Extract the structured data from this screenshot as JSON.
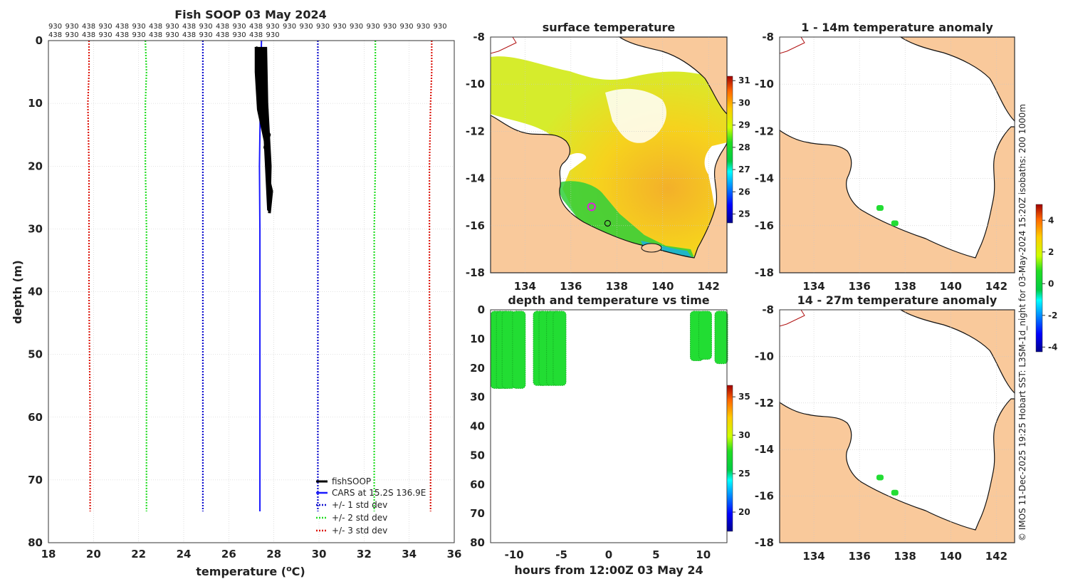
{
  "footer_note": "© IMOS 11-Dec-2025 19:25 Hobart SST: L3SM-1d_night for 03-May-2024 15:20Z isobaths: 200  1000m",
  "colors": {
    "fish": "#000000",
    "cars": "#1a1aff",
    "std1": "#1010d0",
    "std2": "#22dd22",
    "std3": "#dd1a10",
    "land": "#f9c99b",
    "coast": "#111111",
    "obs": "#22dd33",
    "grid": "#c8c8c8"
  },
  "chart_data": [
    {
      "id": "profile",
      "type": "line",
      "title": "Fish SOOP 03 May 2024",
      "xlabel": "temperature (°C)",
      "xlabel_main": "temperature (",
      "xlabel_sup": "o",
      "xlabel_end": "C)",
      "ylabel": "depth (m)",
      "xlim": [
        18,
        36
      ],
      "ylim": [
        80,
        0
      ],
      "xticks": [
        "18",
        "20",
        "22",
        "24",
        "26",
        "28",
        "30",
        "32",
        "34",
        "36"
      ],
      "yticks": [
        "0",
        "10",
        "20",
        "30",
        "40",
        "50",
        "60",
        "70",
        "80"
      ],
      "top_labels_row1": [
        "930",
        "930",
        "438",
        "930",
        "438",
        "930",
        "438",
        "930",
        "438",
        "930",
        "438",
        "930",
        "438",
        "930",
        "930",
        "930",
        "930",
        "930",
        "930",
        "930",
        "930",
        "930",
        "930",
        "930"
      ],
      "top_labels_row2": [
        "438",
        "930",
        "438",
        "930",
        "438",
        "930",
        "438",
        "930",
        "438",
        "930",
        "438",
        "930",
        "438",
        "930"
      ],
      "series": [
        {
          "name": "fishSOOP",
          "x": [
            27.2,
            27.5,
            27.3,
            27.6,
            27.4,
            27.7,
            27.5,
            27.8,
            27.6,
            27.8,
            27.7,
            27.9,
            27.8
          ],
          "y": [
            1,
            3,
            5,
            7,
            9,
            11,
            13,
            15,
            17,
            19,
            21,
            24,
            27.5
          ]
        },
        {
          "name": "CARS at 15.2S 136.9E",
          "x": [
            27.45,
            27.42,
            27.4,
            27.38,
            27.36,
            27.37,
            27.38,
            27.38,
            27.38,
            27.38
          ],
          "y": [
            0,
            5,
            10,
            15,
            20,
            25,
            30,
            50,
            70,
            75
          ]
        },
        {
          "name": "+/- 1 std dev",
          "lower": [
            24.85,
            24.85,
            24.85,
            24.85,
            24.85,
            24.85,
            24.85,
            24.85
          ],
          "upper": [
            29.95,
            29.95,
            29.95,
            29.95,
            29.95,
            29.95,
            29.95,
            29.95
          ],
          "y": [
            0,
            5,
            10,
            20,
            30,
            40,
            60,
            75
          ]
        },
        {
          "name": "+/- 2 std dev",
          "lower": [
            22.3,
            22.35,
            22.3,
            22.3,
            22.35,
            22.35,
            22.35,
            22.35
          ],
          "upper": [
            32.5,
            32.5,
            32.5,
            32.5,
            32.45,
            32.45,
            32.45,
            32.45
          ],
          "y": [
            0,
            5,
            10,
            20,
            30,
            40,
            60,
            75
          ]
        },
        {
          "name": "+/- 3 std dev",
          "lower": [
            19.8,
            19.8,
            19.75,
            19.8,
            19.8,
            19.8,
            19.85,
            19.85
          ],
          "upper": [
            35.0,
            35.0,
            34.95,
            34.9,
            34.9,
            34.9,
            34.95,
            34.95
          ],
          "y": [
            0,
            5,
            10,
            20,
            30,
            40,
            60,
            75
          ]
        }
      ]
    },
    {
      "id": "sst_map",
      "type": "heatmap",
      "title": "surface temperature",
      "xlim": [
        132.5,
        142.8
      ],
      "ylim": [
        -18,
        -8
      ],
      "xticks": [
        "134",
        "136",
        "138",
        "140",
        "142"
      ],
      "yticks": [
        "-8",
        "-10",
        "-12",
        "-14",
        "-16",
        "-18"
      ],
      "colorbar_range": [
        24.6,
        31.2
      ],
      "colorbar_ticks": [
        "31",
        "30",
        "29",
        "28",
        "27",
        "26",
        "25"
      ],
      "markers": [
        {
          "lon": 136.9,
          "lat": -15.2,
          "style": "magenta-circle"
        },
        {
          "lon": 137.6,
          "lat": -15.9,
          "style": "black-circle"
        }
      ]
    },
    {
      "id": "depth_time",
      "type": "scatter",
      "title": "depth and temperature vs time",
      "xlabel": "hours from 12:00Z 03 May 24",
      "xlim": [
        -12.5,
        12.5
      ],
      "ylim": [
        80,
        0
      ],
      "xticks": [
        "-10",
        "-5",
        "0",
        "5",
        "10"
      ],
      "yticks": [
        "0",
        "10",
        "20",
        "30",
        "40",
        "50",
        "60",
        "70",
        "80"
      ],
      "colorbar_range": [
        17.5,
        36.5
      ],
      "colorbar_ticks": [
        "35",
        "30",
        "25",
        "20"
      ],
      "casts": [
        {
          "t": -11.8,
          "dmax": 27
        },
        {
          "t": -11.2,
          "dmax": 27
        },
        {
          "t": -10.6,
          "dmax": 27
        },
        {
          "t": -9.5,
          "dmax": 27
        },
        {
          "t": -7.3,
          "dmax": 26
        },
        {
          "t": -6.7,
          "dmax": 26
        },
        {
          "t": -5.9,
          "dmax": 26
        },
        {
          "t": -5.2,
          "dmax": 26
        },
        {
          "t": 9.3,
          "dmax": 17.5
        },
        {
          "t": 10.2,
          "dmax": 17
        },
        {
          "t": 11.9,
          "dmax": 18.5
        }
      ]
    },
    {
      "id": "anom_shallow",
      "type": "heatmap",
      "title": "1 - 14m temperature anomaly",
      "xlim": [
        132.5,
        142.8
      ],
      "ylim": [
        -18,
        -8
      ],
      "xticks": [
        "134",
        "136",
        "138",
        "140",
        "142"
      ],
      "yticks": [
        "-8",
        "-10",
        "-12",
        "-14",
        "-16",
        "-18"
      ],
      "points": [
        {
          "lon": 136.9,
          "lat": -15.25,
          "anomaly": 0.2
        },
        {
          "lon": 137.55,
          "lat": -15.9,
          "anomaly": 0.3
        }
      ]
    },
    {
      "id": "anom_deep",
      "type": "heatmap",
      "title": "14 - 27m temperature anomaly",
      "xlim": [
        132.5,
        142.8
      ],
      "ylim": [
        -18,
        -8
      ],
      "xticks": [
        "134",
        "136",
        "138",
        "140",
        "142"
      ],
      "yticks": [
        "-8",
        "-10",
        "-12",
        "-14",
        "-16",
        "-18"
      ],
      "points": [
        {
          "lon": 136.9,
          "lat": -15.2,
          "anomaly": 0.2
        },
        {
          "lon": 137.55,
          "lat": -15.85,
          "anomaly": 0.3
        }
      ],
      "colorbar_range": [
        -4.3,
        5.0
      ],
      "colorbar_ticks": [
        "4",
        "2",
        "0",
        "-2",
        "-4"
      ]
    }
  ]
}
